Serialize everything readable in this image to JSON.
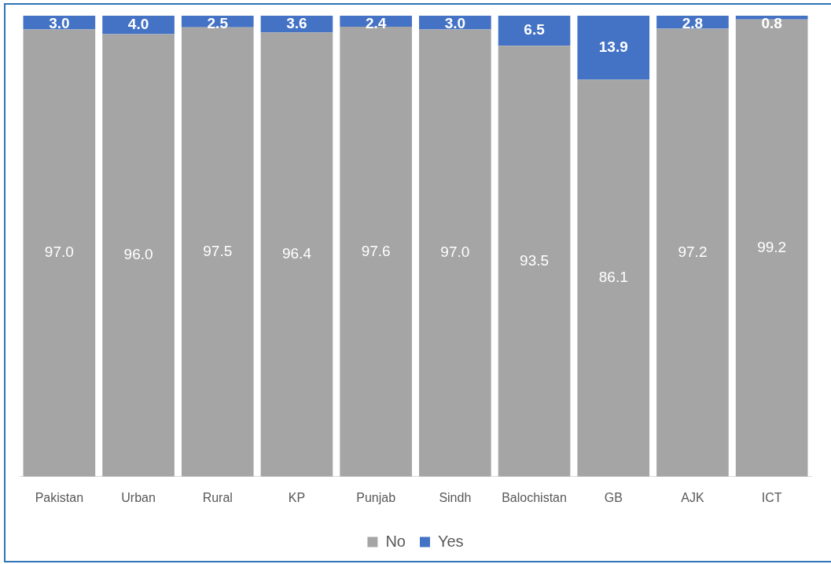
{
  "chart_data": {
    "type": "bar",
    "stacked": true,
    "categories": [
      "Pakistan",
      "Urban",
      "Rural",
      "KP",
      "Punjab",
      "Sindh",
      "Balochistan",
      "GB",
      "AJK",
      "ICT"
    ],
    "series": [
      {
        "name": "No",
        "color": "#a5a5a5",
        "values": [
          97.0,
          96.0,
          97.5,
          96.4,
          97.6,
          97.0,
          93.5,
          86.1,
          97.2,
          99.2
        ],
        "value_labels": [
          "97.0",
          "96.0",
          "97.5",
          "96.4",
          "97.6",
          "97.0",
          "93.5",
          "86.1",
          "97.2",
          "99.2"
        ]
      },
      {
        "name": "Yes",
        "color": "#4472c4",
        "values": [
          3.0,
          4.0,
          2.5,
          3.6,
          2.4,
          3.0,
          6.5,
          13.9,
          2.8,
          0.8
        ],
        "value_labels": [
          "3.0",
          "4.0",
          "2.5",
          "3.6",
          "2.4",
          "3.0",
          "6.5",
          "13.9",
          "2.8",
          "0.8"
        ]
      }
    ],
    "ylim": [
      0,
      100
    ],
    "tick_labels": "x",
    "legend": "bottom"
  }
}
